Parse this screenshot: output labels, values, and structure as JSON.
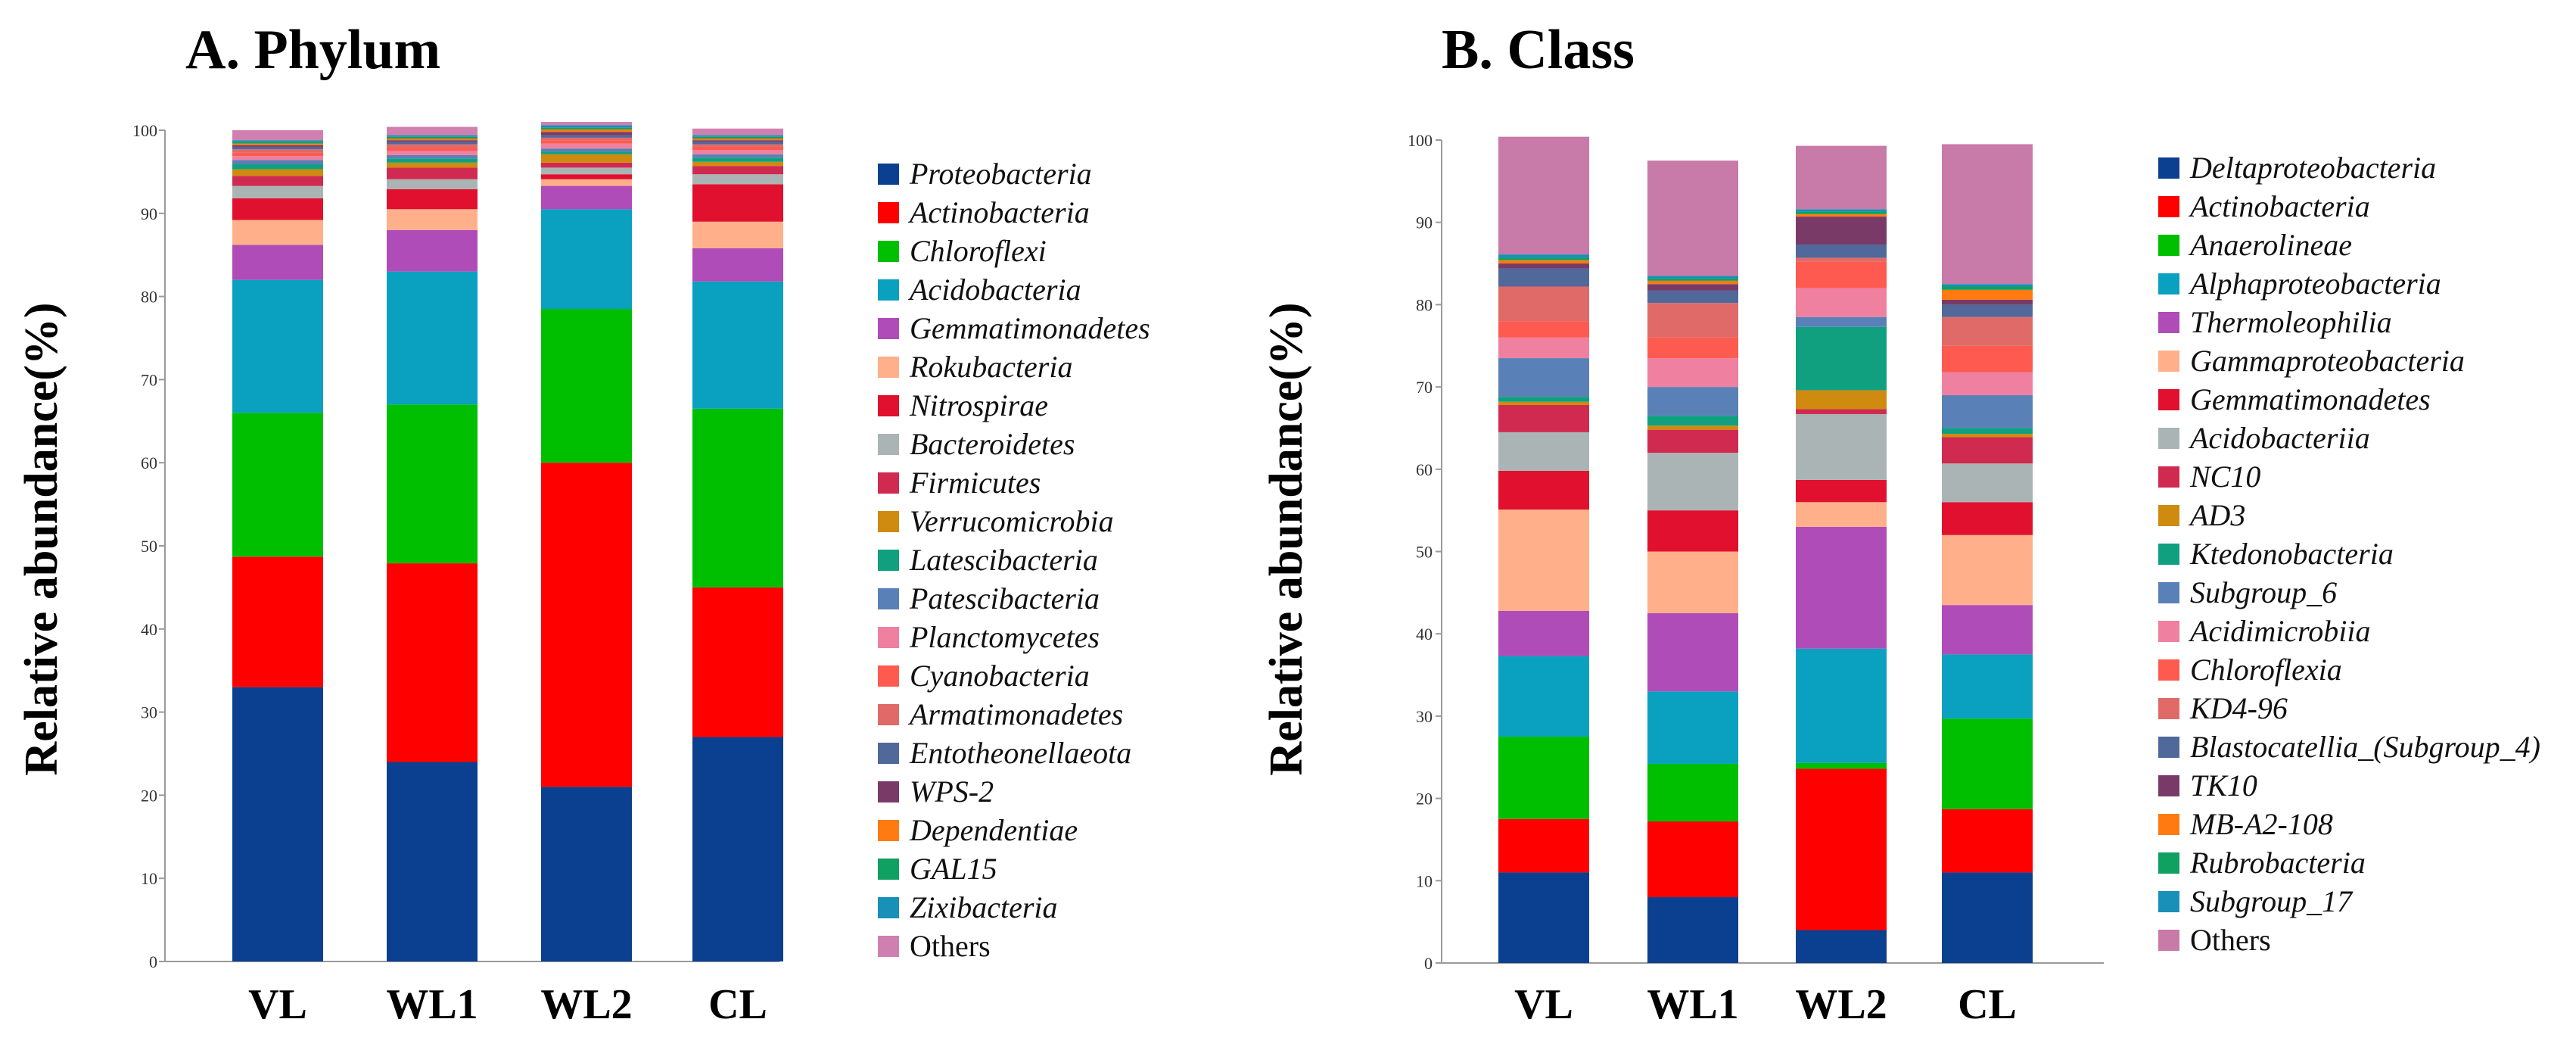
{
  "figure": {
    "panels": [
      {
        "title": "A. Phylum",
        "ylabel": "Relative abundance(%)",
        "yticks": [
          "0",
          "10",
          "20",
          "30",
          "40",
          "50",
          "60",
          "70",
          "80",
          "90",
          "100"
        ],
        "categories": [
          "VL",
          "WL1",
          "WL2",
          "CL"
        ]
      },
      {
        "title": "B. Class",
        "ylabel": "Relative abundance(%)",
        "yticks": [
          "0",
          "10",
          "20",
          "30",
          "40",
          "50",
          "60",
          "70",
          "80",
          "90",
          "100"
        ],
        "categories": [
          "VL",
          "WL1",
          "WL2",
          "CL"
        ]
      }
    ]
  },
  "chart_data": [
    {
      "type": "bar",
      "stacked": true,
      "title": "A. Phylum",
      "xlabel": "",
      "ylabel": "Relative abundance(%)",
      "ylim": [
        0,
        100
      ],
      "grid": false,
      "legend_placement": "right",
      "categories": [
        "VL",
        "WL1",
        "WL2",
        "CL"
      ],
      "series": [
        {
          "name": "Proteobacteria",
          "italic": true,
          "color": "#0b3f8f",
          "values": [
            33.0,
            24.0,
            21.0,
            27.0
          ]
        },
        {
          "name": "Actinobacteria",
          "italic": true,
          "color": "#ff0000",
          "values": [
            15.7,
            23.9,
            39.0,
            18.0
          ]
        },
        {
          "name": "Chloroflexi",
          "italic": true,
          "color": "#00bf00",
          "values": [
            17.3,
            19.1,
            18.5,
            21.5
          ]
        },
        {
          "name": "Acidobacteria",
          "italic": true,
          "color": "#0aa0c0",
          "values": [
            16.0,
            16.0,
            12.0,
            15.3
          ]
        },
        {
          "name": "Gemmatimonadetes",
          "italic": true,
          "color": "#b04cb8",
          "values": [
            4.2,
            5.0,
            2.8,
            4.0
          ]
        },
        {
          "name": "Rokubacteria",
          "italic": true,
          "color": "#ffb08a",
          "values": [
            3.0,
            2.5,
            0.8,
            3.2
          ]
        },
        {
          "name": "Nitrospirae",
          "italic": true,
          "color": "#e0102e",
          "values": [
            2.6,
            2.4,
            0.6,
            4.5
          ]
        },
        {
          "name": "Bacteroidetes",
          "italic": true,
          "color": "#aab4b4",
          "values": [
            1.5,
            1.2,
            0.8,
            1.2
          ]
        },
        {
          "name": "Firmicutes",
          "italic": true,
          "color": "#d02a50",
          "values": [
            1.2,
            1.4,
            0.6,
            1.0
          ]
        },
        {
          "name": "Verrucomicrobia",
          "italic": true,
          "color": "#cf8a10",
          "values": [
            0.8,
            0.6,
            1.0,
            0.5
          ]
        },
        {
          "name": "Latescibacteria",
          "italic": true,
          "color": "#10a080",
          "values": [
            0.6,
            0.5,
            0.3,
            0.5
          ]
        },
        {
          "name": "Patescibacteria",
          "italic": true,
          "color": "#5a80b8",
          "values": [
            0.5,
            0.4,
            0.4,
            0.4
          ]
        },
        {
          "name": "Planctomycetes",
          "italic": true,
          "color": "#f080a0",
          "values": [
            0.5,
            0.5,
            0.6,
            0.5
          ]
        },
        {
          "name": "Cyanobacteria",
          "italic": true,
          "color": "#ff5a50",
          "values": [
            0.4,
            0.4,
            0.4,
            0.4
          ]
        },
        {
          "name": "Armatimonadetes",
          "italic": true,
          "color": "#e06a68",
          "values": [
            0.4,
            0.4,
            0.3,
            0.3
          ]
        },
        {
          "name": "Entotheonellaeota",
          "italic": true,
          "color": "#50689a",
          "values": [
            0.3,
            0.3,
            0.3,
            0.3
          ]
        },
        {
          "name": "WPS-2",
          "italic": true,
          "color": "#7a3a68",
          "values": [
            0.2,
            0.2,
            0.4,
            0.2
          ]
        },
        {
          "name": "Dependentiae",
          "italic": true,
          "color": "#ff7a10",
          "values": [
            0.2,
            0.2,
            0.3,
            0.2
          ]
        },
        {
          "name": "GAL15",
          "italic": true,
          "color": "#10a060",
          "values": [
            0.2,
            0.2,
            0.2,
            0.2
          ]
        },
        {
          "name": "Zixibacteria",
          "italic": true,
          "color": "#1890b8",
          "values": [
            0.2,
            0.2,
            0.3,
            0.2
          ]
        },
        {
          "name": "Others",
          "italic": false,
          "color": "#d080b0",
          "values": [
            1.2,
            1.0,
            0.4,
            0.8
          ]
        }
      ]
    },
    {
      "type": "bar",
      "stacked": true,
      "title": "B. Class",
      "xlabel": "",
      "ylabel": "Relative abundance(%)",
      "ylim": [
        0,
        100
      ],
      "grid": false,
      "legend_placement": "right",
      "categories": [
        "VL",
        "WL1",
        "WL2",
        "CL"
      ],
      "series": [
        {
          "name": "Deltaproteobacteria",
          "italic": true,
          "color": "#0b3f8f",
          "values": [
            11.0,
            8.0,
            4.0,
            11.0
          ]
        },
        {
          "name": "Actinobacteria",
          "italic": true,
          "color": "#ff0000",
          "values": [
            6.5,
            9.2,
            19.6,
            7.7
          ]
        },
        {
          "name": "Anaerolineae",
          "italic": true,
          "color": "#00bf00",
          "values": [
            10.0,
            7.0,
            0.7,
            11.0
          ]
        },
        {
          "name": "Alphaproteobacteria",
          "italic": true,
          "color": "#0aa0c0",
          "values": [
            9.8,
            8.8,
            13.9,
            7.8
          ]
        },
        {
          "name": "Thermoleophilia",
          "italic": true,
          "color": "#b04cb8",
          "values": [
            5.5,
            9.5,
            14.8,
            6.0
          ]
        },
        {
          "name": "Gammaproteobacteria",
          "italic": true,
          "color": "#ffb08a",
          "values": [
            12.3,
            7.5,
            3.0,
            8.5
          ]
        },
        {
          "name": "Gemmatimonadetes",
          "italic": true,
          "color": "#e0102e",
          "values": [
            4.7,
            5.0,
            2.7,
            4.0
          ]
        },
        {
          "name": "Acidobacteriia",
          "italic": true,
          "color": "#aab4b4",
          "values": [
            4.7,
            7.0,
            8.0,
            4.7
          ]
        },
        {
          "name": "NC10",
          "italic": true,
          "color": "#d02a50",
          "values": [
            3.3,
            2.8,
            0.6,
            3.2
          ]
        },
        {
          "name": "AD3",
          "italic": true,
          "color": "#cf8a10",
          "values": [
            0.4,
            0.5,
            2.3,
            0.4
          ]
        },
        {
          "name": "Ktedonobacteria",
          "italic": true,
          "color": "#10a080",
          "values": [
            0.6,
            1.2,
            7.7,
            0.7
          ]
        },
        {
          "name": "Subgroup_6",
          "italic": true,
          "color": "#5a80b8",
          "values": [
            4.7,
            3.5,
            1.2,
            4.0
          ]
        },
        {
          "name": "Acidimicrobiia",
          "italic": true,
          "color": "#f080a0",
          "values": [
            2.5,
            3.5,
            3.5,
            2.8
          ]
        },
        {
          "name": "Chloroflexia",
          "italic": true,
          "color": "#ff5a50",
          "values": [
            2.0,
            2.5,
            3.2,
            3.2
          ]
        },
        {
          "name": "KD4-96",
          "italic": true,
          "color": "#e06a68",
          "values": [
            4.2,
            4.2,
            0.5,
            3.5
          ]
        },
        {
          "name": "Blastocatellia_(Subgroup_4)",
          "italic": true,
          "color": "#50689a",
          "values": [
            2.2,
            1.5,
            1.6,
            1.5
          ]
        },
        {
          "name": "TK10",
          "italic": true,
          "color": "#7a3a68",
          "values": [
            0.6,
            0.8,
            3.4,
            0.6
          ]
        },
        {
          "name": "MB-A2-108",
          "italic": true,
          "color": "#ff7a10",
          "values": [
            0.4,
            0.4,
            0.3,
            1.2
          ]
        },
        {
          "name": "Rubrobacteria",
          "italic": true,
          "color": "#10a060",
          "values": [
            0.3,
            0.3,
            0.3,
            0.4
          ]
        },
        {
          "name": "Subgroup_17",
          "italic": true,
          "color": "#1890b8",
          "values": [
            0.4,
            0.3,
            0.3,
            0.3
          ]
        },
        {
          "name": "Others",
          "italic": false,
          "color": "#c87aa8",
          "values": [
            14.3,
            14.0,
            7.7,
            17.0
          ]
        }
      ]
    }
  ]
}
